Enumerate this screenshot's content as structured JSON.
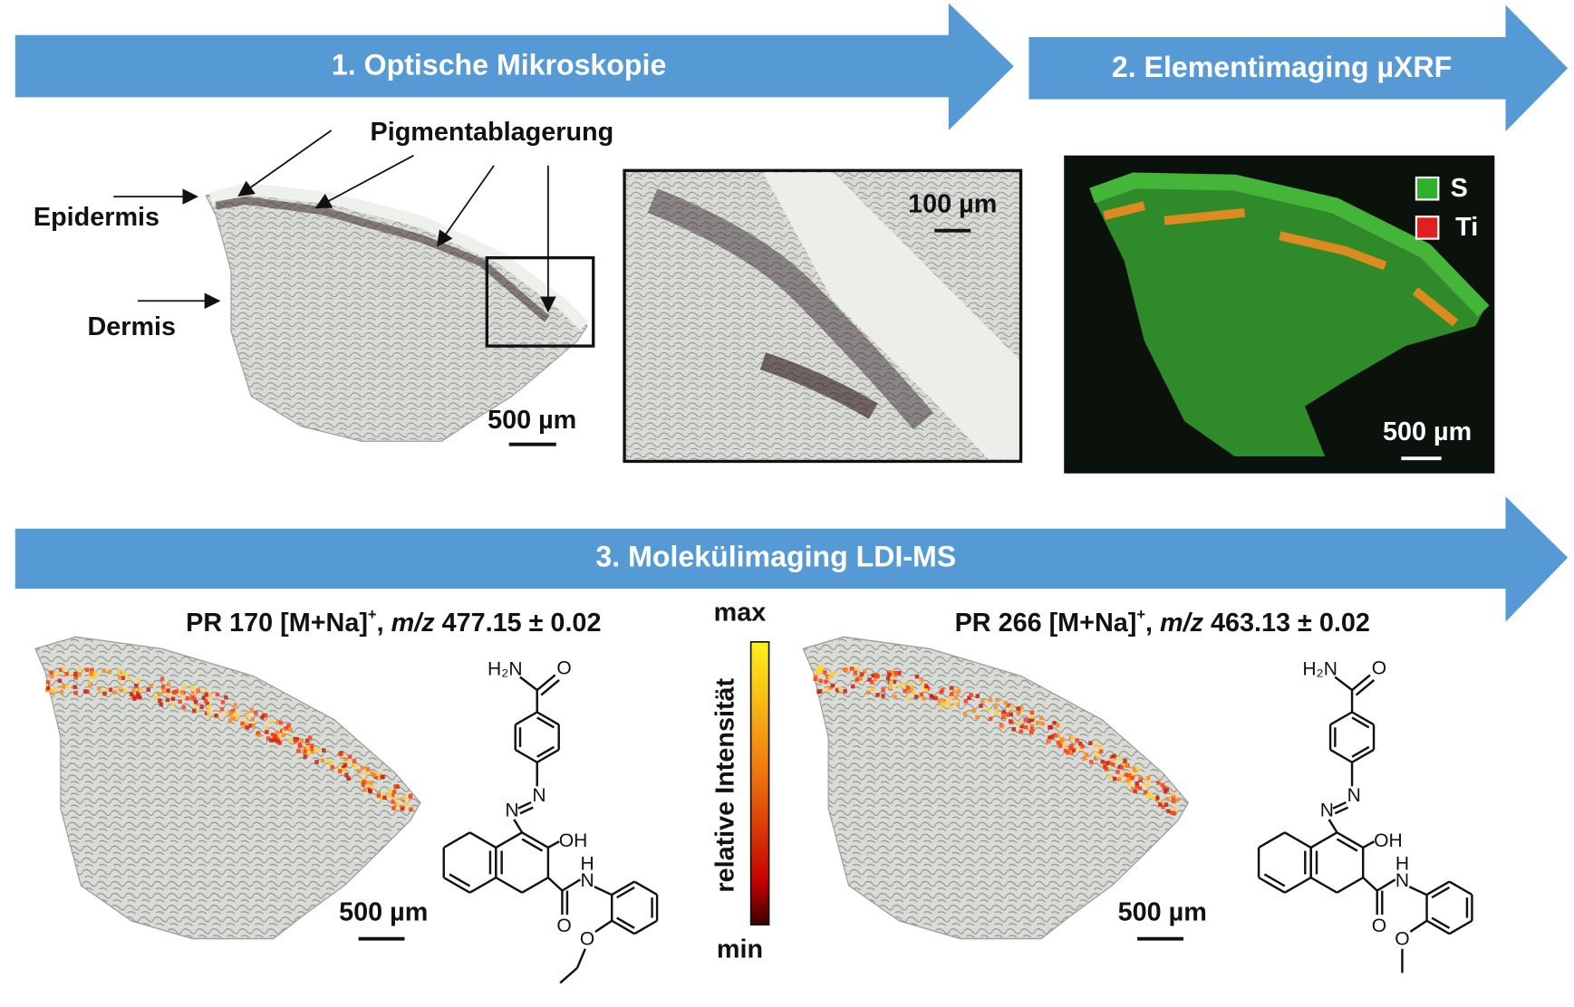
{
  "steps": [
    "1. Optische Mikroskopie",
    "2. Elementimaging µXRF",
    "3. Molekülimaging LDI-MS"
  ],
  "microscopy": {
    "annotation": "Pigmentablagerung",
    "labels": [
      "Epidermis",
      "Dermis"
    ],
    "scale_bar": "500 µm",
    "inset_scale_bar": "100 µm"
  },
  "xrf": {
    "legend": [
      "S",
      "Ti"
    ],
    "scale_bar": "500 µm"
  },
  "ldi_ms": {
    "panels": [
      {
        "title": [
          "PR 170 [M+Na]",
          "+",
          ", ",
          "m/z",
          " 477.15 ± 0.02"
        ],
        "scale_bar": "500 µm",
        "atoms": [
          "H₂N",
          "O",
          "N",
          "N",
          "OH",
          "H",
          "N",
          "O",
          "O"
        ]
      },
      {
        "title": [
          "PR 266 [M+Na]",
          "+",
          ", ",
          "m/z",
          " 463.13 ± 0.02"
        ],
        "scale_bar": "500 µm",
        "atoms": [
          "H₂N",
          "O",
          "N",
          "N",
          "OH",
          "H",
          "N",
          "O",
          "O"
        ]
      }
    ],
    "colorbar": {
      "max": "max",
      "label": "relative Intensität",
      "min": "min"
    }
  }
}
